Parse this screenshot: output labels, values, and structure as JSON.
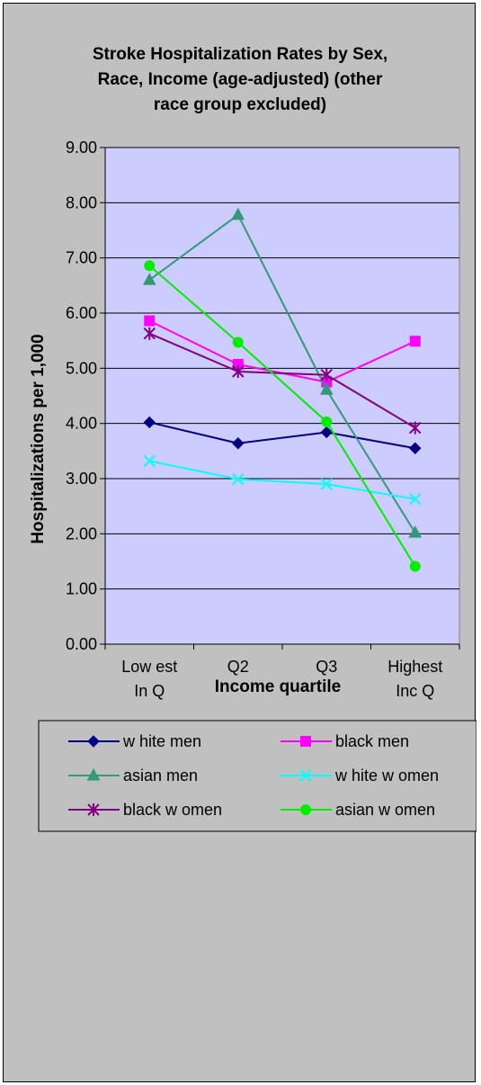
{
  "chart_data": {
    "type": "line",
    "title_lines": [
      "Stroke Hospitalization Rates by Sex,",
      "Race, Income (age-adjusted) (other",
      "race group excluded)"
    ],
    "xlabel": "Income quartile",
    "ylabel": "Hospitalizations per 1,000",
    "categories": [
      [
        "Low est",
        "In Q"
      ],
      [
        "Q2"
      ],
      [
        "Q3"
      ],
      [
        "Highest",
        "Inc Q"
      ]
    ],
    "ylim": [
      0,
      9
    ],
    "ytick_step": 1,
    "ytick_labels": [
      "0.00",
      "1.00",
      "2.00",
      "3.00",
      "4.00",
      "5.00",
      "6.00",
      "7.00",
      "8.00",
      "9.00"
    ],
    "grid": true,
    "plot_background": "#ccccff",
    "chart_background": "#c0c0c0",
    "legend_position": "bottom",
    "series": [
      {
        "name": "w hite men",
        "values": [
          4.02,
          3.64,
          3.84,
          3.55
        ],
        "color": "#000080",
        "marker": "diamond"
      },
      {
        "name": "black men",
        "values": [
          5.86,
          5.07,
          4.75,
          5.49
        ],
        "color": "#ff00ff",
        "marker": "square"
      },
      {
        "name": "asian men",
        "values": [
          6.6,
          7.78,
          4.61,
          2.02
        ],
        "color": "#339977",
        "marker": "triangle"
      },
      {
        "name": "w hite w omen",
        "values": [
          3.32,
          2.99,
          2.9,
          2.63
        ],
        "color": "#00ffff",
        "marker": "x"
      },
      {
        "name": "black w omen",
        "values": [
          5.63,
          4.94,
          4.88,
          3.92
        ],
        "color": "#800080",
        "marker": "star"
      },
      {
        "name": "asian w omen",
        "values": [
          6.86,
          5.47,
          4.03,
          1.41
        ],
        "color": "#00ee00",
        "marker": "circle"
      }
    ]
  }
}
